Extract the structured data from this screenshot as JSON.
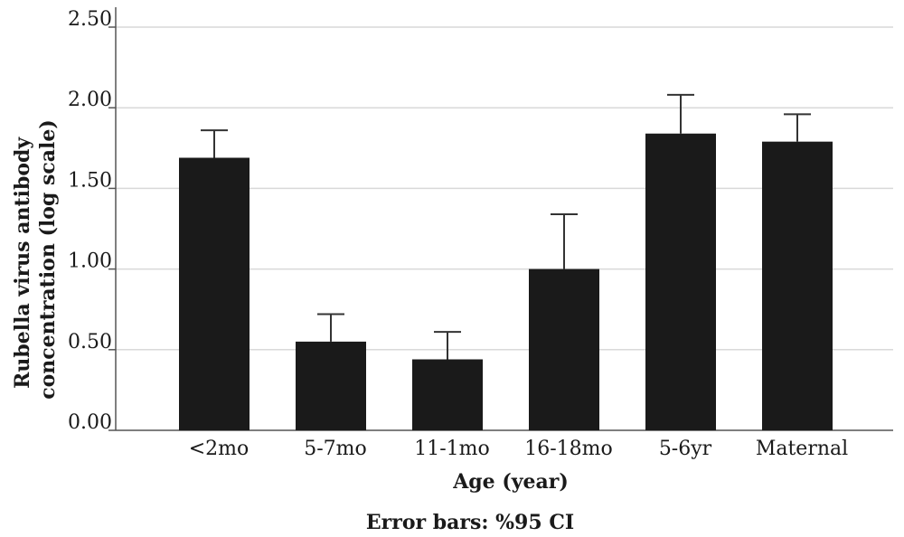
{
  "chart_data": {
    "type": "bar",
    "categories": [
      "<2mo",
      "5-7mo",
      "11-1mo",
      "16-18mo",
      "5-6yr",
      "Maternal"
    ],
    "series": [
      {
        "values": [
          1.69,
          0.55,
          0.44,
          1.0,
          1.84,
          1.79
        ],
        "error_upper": [
          1.86,
          0.72,
          0.61,
          1.34,
          2.08,
          1.96
        ]
      }
    ],
    "ylim": [
      0,
      2.5
    ],
    "yticks": [
      "0.00",
      "0.50",
      "1.00",
      "1.50",
      "2.00",
      "2.50"
    ],
    "xlabel": "Age (year)",
    "ylabel": "Rubella virus antibody concentration (log scale)",
    "ylabel_line1": "Rubella virus antibody",
    "ylabel_line2": "concentration (log scale)",
    "note": "Error bars: %95 CI",
    "grid": true,
    "bar_color": "#1a1a1a",
    "grid_color": "#d9d9d9"
  }
}
